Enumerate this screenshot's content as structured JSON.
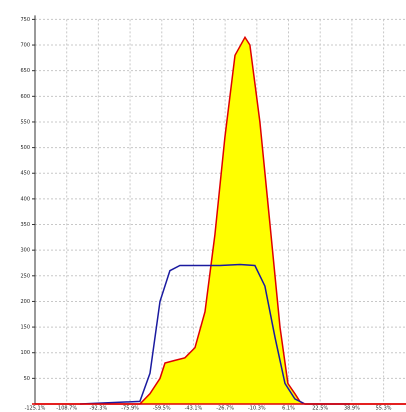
{
  "chart_data": {
    "type": "area",
    "xlim": [
      -125.1,
      66.9
    ],
    "xticks": [
      {
        "value": -125.1,
        "label": "-125.1%"
      },
      {
        "value": -108.7,
        "label": "-108.7%"
      },
      {
        "value": -92.3,
        "label": "-92.3%"
      },
      {
        "value": -75.9,
        "label": "-75.9%"
      },
      {
        "value": -59.5,
        "label": "-59.5%"
      },
      {
        "value": -43.1,
        "label": "-43.1%"
      },
      {
        "value": -26.7,
        "label": "-26.7%"
      },
      {
        "value": -10.3,
        "label": "-10.3%"
      },
      {
        "value": 6.1,
        "label": "6.1%"
      },
      {
        "value": 22.5,
        "label": "22.5%"
      },
      {
        "value": 38.9,
        "label": "38.9%"
      },
      {
        "value": 55.3,
        "label": "55.3%"
      }
    ],
    "ylim": [
      0,
      750
    ],
    "yticks": [
      50,
      100,
      150,
      200,
      250,
      300,
      350,
      400,
      450,
      500,
      550,
      600,
      650,
      700,
      750
    ],
    "grid": true,
    "series": [
      {
        "color": "#e00000",
        "fill": "#ffff00",
        "x": [
          -125.1,
          -70.8,
          -65.6,
          -60.4,
          -57.8,
          -52.7,
          -47.5,
          -42.3,
          -37.1,
          -32.0,
          -26.8,
          -21.6,
          -16.4,
          -13.9,
          -8.7,
          -3.5,
          1.7,
          5.8,
          9.4,
          12.0,
          14.6,
          66.9
        ],
        "values": [
          0,
          0,
          20,
          50,
          80,
          85,
          90,
          110,
          180,
          330,
          520,
          680,
          715,
          700,
          550,
          350,
          150,
          40,
          20,
          5,
          0,
          0
        ]
      },
      {
        "color": "#1a1aa0",
        "x": [
          -101.8,
          -70.8,
          -65.6,
          -60.4,
          -55.3,
          -50.1,
          -39.7,
          -29.4,
          -19.0,
          -11.3,
          -6.1,
          -0.9,
          4.3,
          9.4,
          14.6,
          37.9
        ],
        "values": [
          0,
          5,
          60,
          200,
          260,
          270,
          270,
          270,
          272,
          270,
          230,
          130,
          40,
          10,
          0,
          0
        ]
      }
    ]
  }
}
